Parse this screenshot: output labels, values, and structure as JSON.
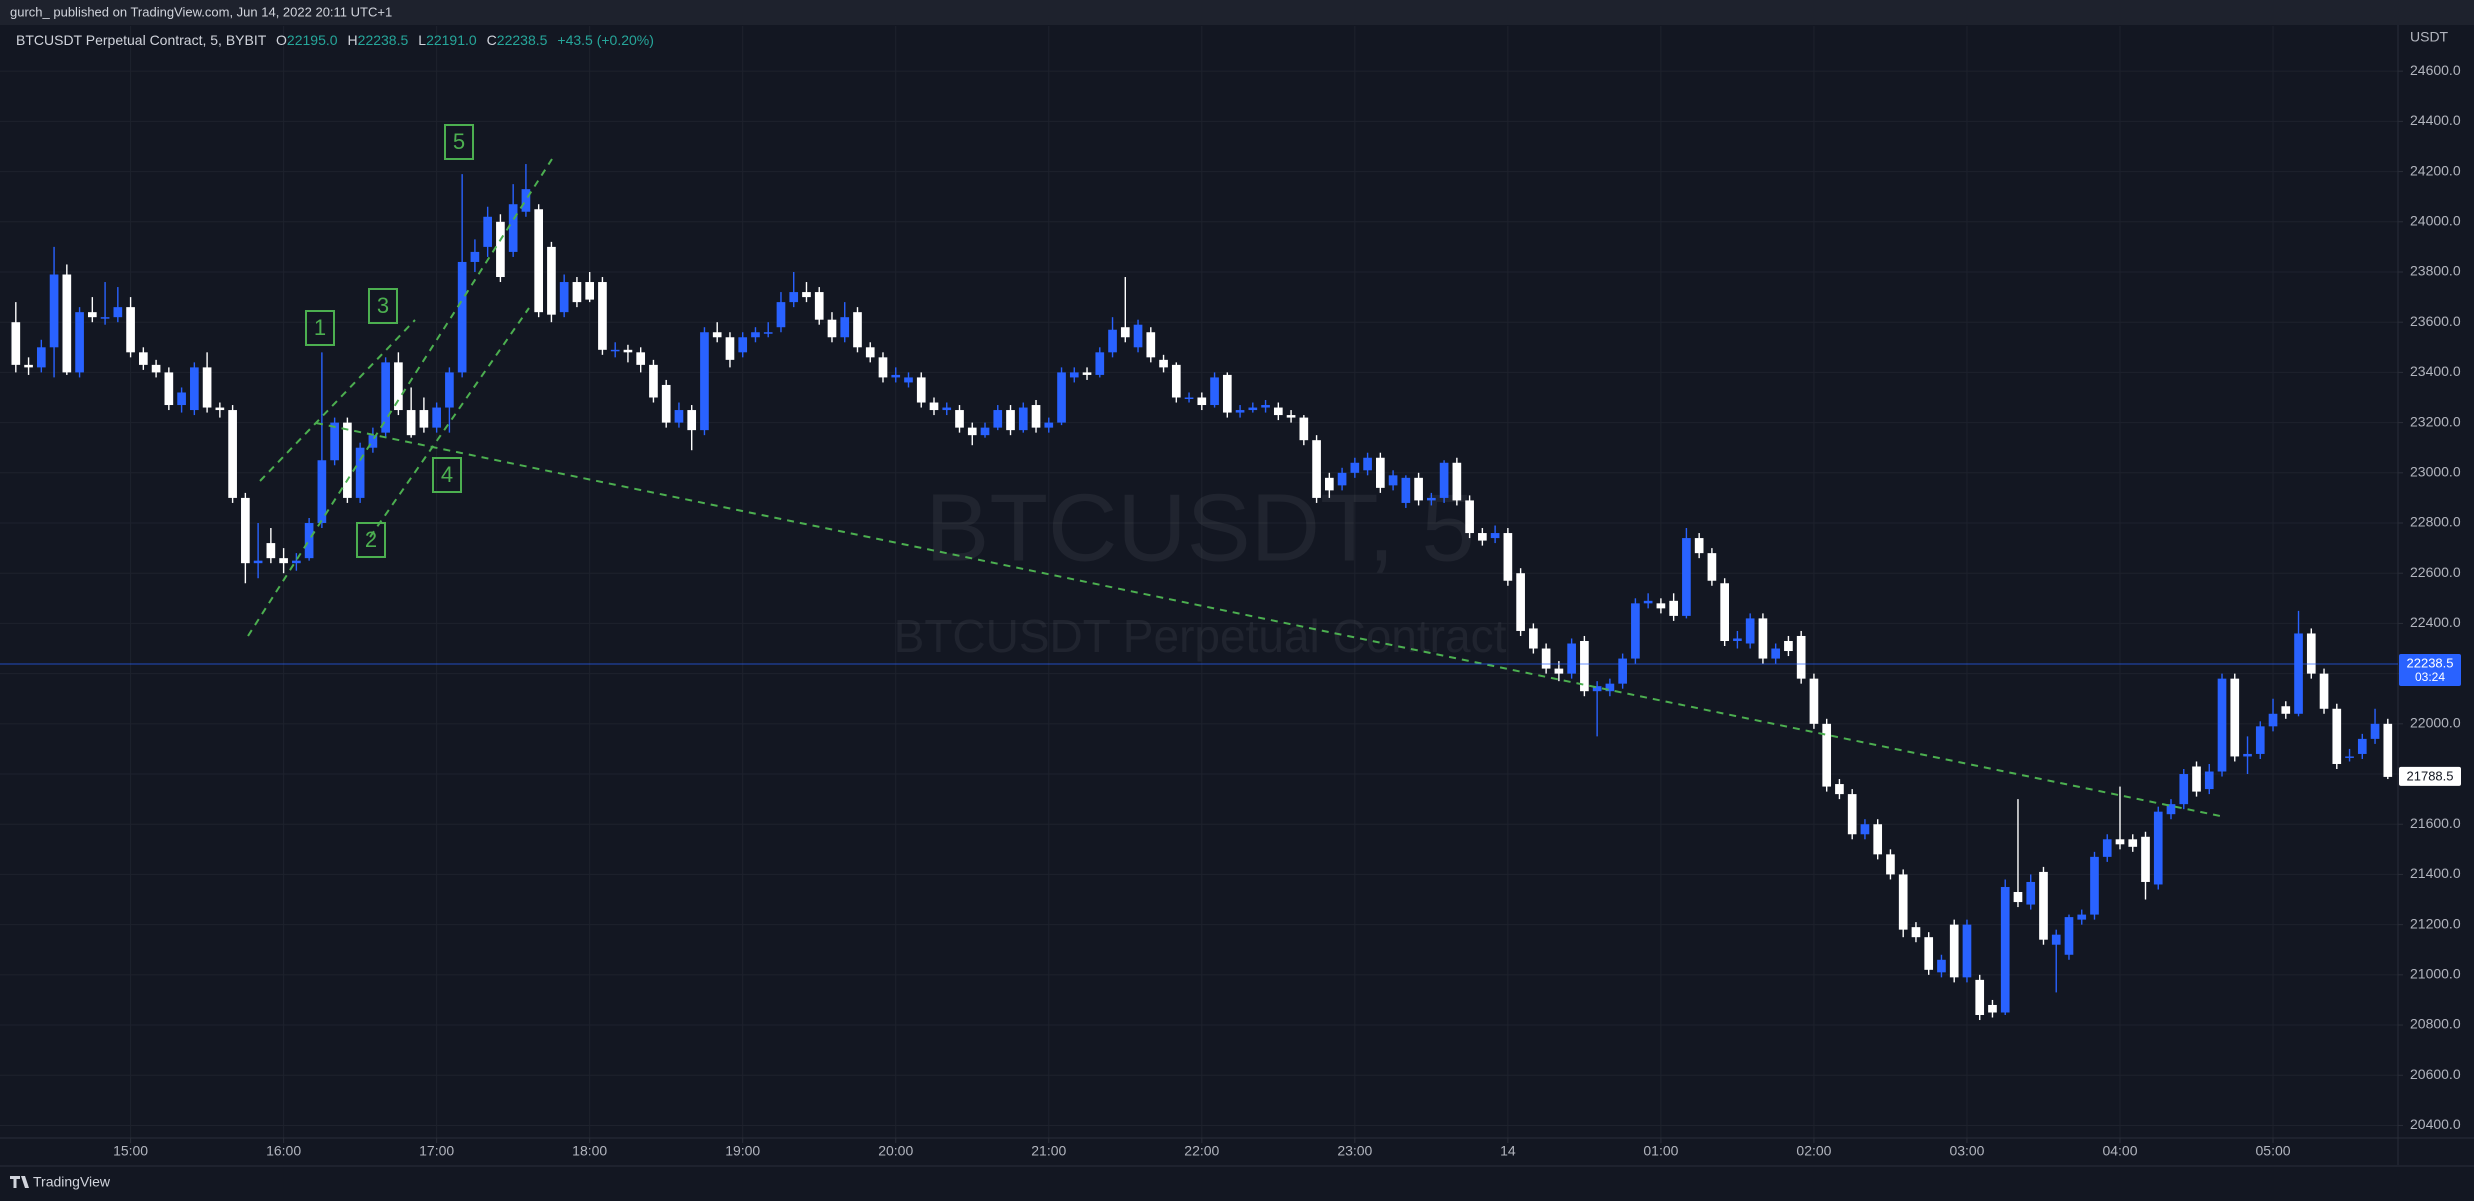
{
  "header": {
    "title": "gurch_ published on TradingView.com, Jun 14, 2022 20:11 UTC+1",
    "brand": "TradingView"
  },
  "wave_labels": [
    "1",
    "2",
    "3",
    "4",
    "5"
  ],
  "chart_data": {
    "type": "candlestick",
    "legend": {
      "symbol": "BTCUSDT Perpetual Contract, 5, BYBIT",
      "o_label": "O",
      "o": "22195.0",
      "h_label": "H",
      "h": "22238.5",
      "l_label": "L",
      "l": "22191.0",
      "c_label": "C",
      "c": "22238.5",
      "change": "+43.5 (+0.20%)"
    },
    "watermark": "BTCUSDT, 5",
    "watermark_subtitle": "BTCUSDT Perpetual Contract",
    "y_unit": "USDT",
    "up_color": "#2962ff",
    "down_color": "#ffffff",
    "grid": true,
    "xlim": [
      -1.24,
      186.8
    ],
    "ylim": [
      20350,
      24780
    ],
    "xticks": [
      {
        "value": 9,
        "label": "15:00"
      },
      {
        "value": 21,
        "label": "16:00"
      },
      {
        "value": 33,
        "label": "17:00"
      },
      {
        "value": 45,
        "label": "18:00"
      },
      {
        "value": 57,
        "label": "19:00"
      },
      {
        "value": 69,
        "label": "20:00"
      },
      {
        "value": 81,
        "label": "21:00"
      },
      {
        "value": 93,
        "label": "22:00"
      },
      {
        "value": 105,
        "label": "23:00"
      },
      {
        "value": 117,
        "label": "14"
      },
      {
        "value": 129,
        "label": "01:00"
      },
      {
        "value": 141,
        "label": "02:00"
      },
      {
        "value": 153,
        "label": "03:00"
      },
      {
        "value": 165,
        "label": "04:00"
      },
      {
        "value": 177,
        "label": "05:00"
      }
    ],
    "yticks": [
      {
        "value": 20400,
        "label": "20400.0"
      },
      {
        "value": 20600,
        "label": "20600.0"
      },
      {
        "value": 20800,
        "label": "20800.0"
      },
      {
        "value": 21000,
        "label": "21000.0"
      },
      {
        "value": 21200,
        "label": "21200.0"
      },
      {
        "value": 21400,
        "label": "21400.0"
      },
      {
        "value": 21600,
        "label": "21600.0"
      },
      {
        "value": 21800,
        "label": "21800.0"
      },
      {
        "value": 22000,
        "label": "22000.0"
      },
      {
        "value": 22200,
        "label": "22200.0"
      },
      {
        "value": 22400,
        "label": "22400.0"
      },
      {
        "value": 22600,
        "label": "22600.0"
      },
      {
        "value": 22800,
        "label": "22800.0"
      },
      {
        "value": 23000,
        "label": "23000.0"
      },
      {
        "value": 23200,
        "label": "23200.0"
      },
      {
        "value": 23400,
        "label": "23400.0"
      },
      {
        "value": 23600,
        "label": "23600.0"
      },
      {
        "value": 23800,
        "label": "23800.0"
      },
      {
        "value": 24000,
        "label": "24000.0"
      },
      {
        "value": 24200,
        "label": "24200.0"
      },
      {
        "value": 24400,
        "label": "24400.0"
      },
      {
        "value": 24600,
        "label": "24600.0"
      }
    ],
    "price_markers": [
      {
        "value": 22238.5,
        "countdown": "03:24",
        "color": "#2962ff",
        "text_color": "#ffffff"
      },
      {
        "value": 21788.5,
        "color": "#ffffff",
        "text_color": "#131722"
      }
    ],
    "open": [
      23600,
      23430,
      23420,
      23500,
      23790,
      23400,
      23640,
      23620,
      23620,
      23660,
      23480,
      23430,
      23400,
      23270,
      23250,
      23420,
      23260,
      23250,
      22900,
      22640,
      22720,
      22660,
      22640,
      22660,
      22800,
      23050,
      23200,
      22900,
      23100,
      23160,
      23440,
      23250,
      23250,
      23180,
      23260,
      23400,
      23840,
      23900,
      24000,
      23880,
      24040,
      24050,
      23900,
      23640,
      23760,
      23760,
      23760,
      23490,
      23490,
      23480,
      23430,
      23350,
      23200,
      23250,
      23170,
      23560,
      23540,
      23480,
      23540,
      23560,
      23580,
      23680,
      23720,
      23720,
      23610,
      23540,
      23640,
      23500,
      23460,
      23380,
      23360,
      23380,
      23280,
      23250,
      23250,
      23180,
      23150,
      23180,
      23250,
      23170,
      23270,
      23180,
      23200,
      23380,
      23400,
      23390,
      23480,
      23580,
      23500,
      23560,
      23450,
      23430,
      23300,
      23300,
      23270,
      23390,
      23240,
      23250,
      23260,
      23260,
      23230,
      23220,
      23130,
      22980,
      22950,
      23000,
      23010,
      23060,
      22950,
      22880,
      22980,
      22890,
      22900,
      23040,
      22890,
      22760,
      22740,
      22760,
      22600,
      22380,
      22300,
      22220,
      22200,
      22330,
      22130,
      22130,
      22160,
      22260,
      22480,
      22480,
      22490,
      22430,
      22740,
      22680,
      22560,
      22330,
      22320,
      22420,
      22260,
      22330,
      22350,
      22180,
      22000,
      21760,
      21720,
      21560,
      21600,
      21480,
      21400,
      21190,
      21150,
      21010,
      21200,
      20990,
      20980,
      20880,
      20850,
      21330,
      21280,
      21410,
      21120,
      21080,
      21220,
      21240,
      21470,
      21540,
      21540,
      21550,
      21360,
      21640,
      21680,
      21830,
      21740,
      21810,
      22180,
      21870,
      21880,
      21990,
      22070,
      22040,
      22360,
      22200,
      22060,
      21870,
      21880,
      21940,
      22000
    ],
    "high": [
      23680,
      23460,
      23530,
      23900,
      23830,
      23660,
      23700,
      23760,
      23740,
      23700,
      23500,
      23450,
      23420,
      23340,
      23440,
      23480,
      23280,
      23270,
      22920,
      22800,
      22780,
      22700,
      22680,
      22820,
      23480,
      23220,
      23220,
      23120,
      23180,
      23460,
      23480,
      23340,
      23300,
      23280,
      23420,
      24190,
      23930,
      24060,
      24030,
      24150,
      24230,
      24070,
      23920,
      23790,
      23780,
      23800,
      23780,
      23520,
      23510,
      23500,
      23450,
      23370,
      23280,
      23270,
      23580,
      23600,
      23560,
      23560,
      23580,
      23600,
      23720,
      23800,
      23760,
      23740,
      23640,
      23680,
      23660,
      23520,
      23480,
      23420,
      23400,
      23400,
      23300,
      23280,
      23270,
      23200,
      23200,
      23270,
      23270,
      23280,
      23290,
      23220,
      23420,
      23420,
      23420,
      23500,
      23620,
      23780,
      23610,
      23580,
      23470,
      23440,
      23320,
      23320,
      23400,
      23400,
      23270,
      23280,
      23290,
      23280,
      23250,
      23230,
      23150,
      23000,
      23020,
      23060,
      23080,
      23080,
      23010,
      22990,
      23000,
      22920,
      23050,
      23060,
      22910,
      22780,
      22790,
      22780,
      22620,
      22400,
      22320,
      22250,
      22340,
      22350,
      22170,
      22180,
      22280,
      22500,
      22520,
      22500,
      22520,
      22780,
      22760,
      22700,
      22580,
      22370,
      22440,
      22440,
      22320,
      22350,
      22370,
      22200,
      22020,
      21780,
      21740,
      21620,
      21620,
      21500,
      21420,
      21210,
      21170,
      21080,
      21220,
      21220,
      21000,
      20900,
      21380,
      21700,
      21400,
      21430,
      21180,
      21240,
      21260,
      21490,
      21560,
      21750,
      21560,
      21570,
      21670,
      21700,
      21820,
      21850,
      21840,
      22200,
      22200,
      21950,
      22010,
      22100,
      22090,
      22450,
      22380,
      22220,
      22080,
      21900,
      21960,
      22060,
      22020
    ],
    "low": [
      23400,
      23390,
      23400,
      23380,
      23390,
      23380,
      23600,
      23590,
      23600,
      23460,
      23410,
      23380,
      23250,
      23240,
      23230,
      23240,
      23220,
      22880,
      22560,
      22580,
      22640,
      22600,
      22610,
      22650,
      22780,
      23030,
      22880,
      22880,
      23080,
      23140,
      23230,
      23140,
      23160,
      23160,
      23160,
      23380,
      23800,
      23860,
      23760,
      23860,
      24020,
      23620,
      23600,
      23620,
      23660,
      23680,
      23470,
      23460,
      23440,
      23400,
      23280,
      23180,
      23180,
      23090,
      23150,
      23520,
      23420,
      23460,
      23520,
      23540,
      23560,
      23660,
      23680,
      23590,
      23520,
      23520,
      23480,
      23440,
      23360,
      23360,
      23340,
      23260,
      23230,
      23230,
      23160,
      23110,
      23140,
      23170,
      23150,
      23160,
      23160,
      23160,
      23190,
      23360,
      23370,
      23380,
      23460,
      23520,
      23480,
      23440,
      23400,
      23280,
      23280,
      23250,
      23260,
      23220,
      23220,
      23240,
      23240,
      23210,
      23200,
      23110,
      22880,
      22900,
      22930,
      22980,
      22990,
      22920,
      22930,
      22860,
      22870,
      22870,
      22880,
      22870,
      22740,
      22710,
      22720,
      22550,
      22350,
      22280,
      22200,
      22170,
      22180,
      22110,
      21950,
      22110,
      22140,
      22240,
      22460,
      22440,
      22410,
      22420,
      22660,
      22550,
      22310,
      22300,
      22300,
      22240,
      22240,
      22270,
      22160,
      21980,
      21730,
      21700,
      21540,
      21540,
      21460,
      21380,
      21150,
      21130,
      21000,
      20990,
      20970,
      20970,
      20820,
      20830,
      20840,
      21270,
      21260,
      21120,
      20930,
      21060,
      21200,
      21220,
      21450,
      21500,
      21490,
      21300,
      21340,
      21620,
      21660,
      21710,
      21720,
      21790,
      21850,
      21800,
      21860,
      21970,
      22020,
      22030,
      22180,
      22040,
      21820,
      21850,
      21860,
      21920,
      21780
    ],
    "close": [
      23430,
      23420,
      23500,
      23790,
      23400,
      23640,
      23620,
      23620,
      23660,
      23480,
      23430,
      23400,
      23270,
      23320,
      23420,
      23260,
      23250,
      22900,
      22640,
      22650,
      22660,
      22640,
      22650,
      22800,
      23050,
      23200,
      22900,
      23100,
      23150,
      23440,
      23250,
      23150,
      23180,
      23260,
      23400,
      23840,
      23880,
      24020,
      23780,
      24070,
      24130,
      23640,
      23630,
      23760,
      23680,
      23690,
      23490,
      23490,
      23480,
      23430,
      23300,
      23200,
      23250,
      23170,
      23560,
      23540,
      23450,
      23540,
      23560,
      23560,
      23680,
      23720,
      23700,
      23610,
      23540,
      23620,
      23500,
      23460,
      23380,
      23390,
      23380,
      23280,
      23250,
      23260,
      23180,
      23150,
      23180,
      23250,
      23170,
      23260,
      23180,
      23200,
      23400,
      23400,
      23390,
      23480,
      23570,
      23540,
      23590,
      23460,
      23420,
      23300,
      23300,
      23270,
      23380,
      23240,
      23250,
      23260,
      23270,
      23230,
      23220,
      23130,
      22900,
      22930,
      23000,
      23040,
      23060,
      22940,
      22990,
      22980,
      22890,
      22900,
      23040,
      22890,
      22760,
      22730,
      22760,
      22570,
      22370,
      22300,
      22220,
      22200,
      22320,
      22130,
      22150,
      22160,
      22260,
      22480,
      22490,
      22460,
      22430,
      22740,
      22680,
      22570,
      22330,
      22340,
      22420,
      22260,
      22300,
      22290,
      22180,
      22000,
      21750,
      21720,
      21560,
      21600,
      21480,
      21400,
      21180,
      21150,
      21020,
      21060,
      20990,
      21200,
      20840,
      20850,
      21350,
      21290,
      21370,
      21140,
      21160,
      21230,
      21240,
      21470,
      21540,
      21520,
      21510,
      21370,
      21650,
      21680,
      21800,
      21730,
      21810,
      22180,
      21870,
      21880,
      21990,
      22040,
      22040,
      22360,
      22200,
      22060,
      21840,
      21870,
      21940,
      22000,
      21788.5
    ]
  }
}
